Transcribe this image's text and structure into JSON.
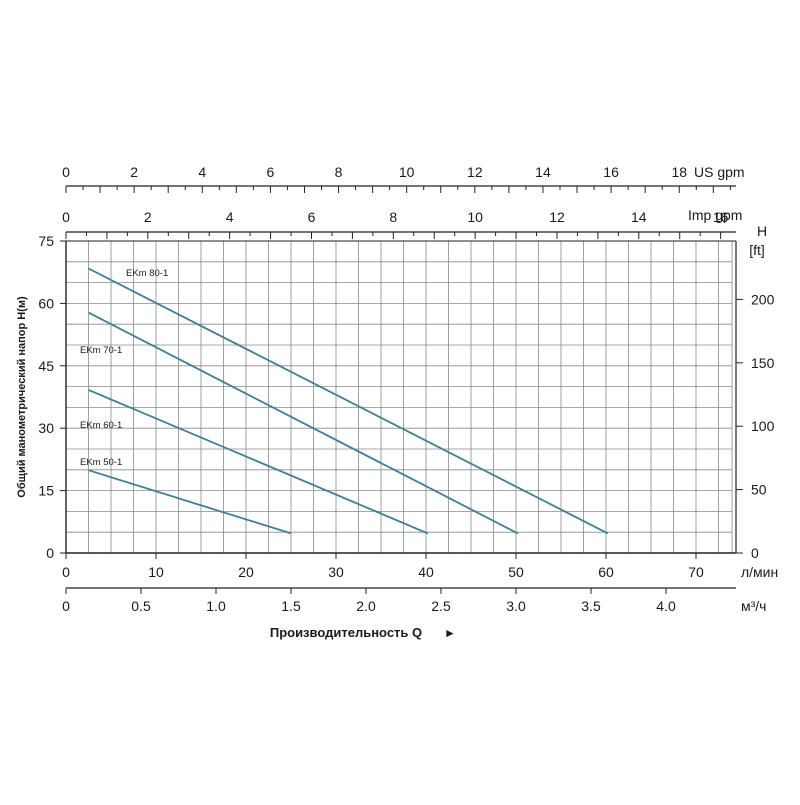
{
  "chart_data": {
    "type": "line",
    "xlabel": "Производительность Q",
    "xlabel_arrow": "►",
    "ylabel": "Общий манометрический напор H(м)",
    "colors": {
      "curve": "#3d7f94",
      "grid": "#8a8a8a",
      "axis": "#222222"
    },
    "grid": true,
    "primary_x": {
      "unit": "л/мин",
      "range": [
        0,
        76
      ],
      "ticks": [
        0,
        10,
        20,
        30,
        40,
        50,
        60,
        70
      ],
      "tick_labels": [
        "0",
        "10",
        "20",
        "30",
        "40",
        "50",
        "60",
        "70"
      ]
    },
    "primary_y": {
      "unit": "",
      "range": [
        0,
        75
      ],
      "ticks": [
        0,
        15,
        30,
        45,
        60,
        75
      ],
      "tick_labels": [
        "0",
        "15",
        "30",
        "45",
        "60",
        "75"
      ]
    },
    "secondary_x_bottom": {
      "unit": "м³/ч",
      "ticks": [
        0,
        0.5,
        1.0,
        1.5,
        2.0,
        2.5,
        3.0,
        3.5,
        4.0
      ],
      "tick_labels": [
        "0",
        "0.5",
        "1.0",
        "1.5",
        "2.0",
        "2.5",
        "3.0",
        "3.5",
        "4.0"
      ]
    },
    "secondary_x_imp": {
      "unit": "Imp gpm",
      "ticks": [
        0,
        2,
        4,
        6,
        8,
        10,
        12,
        14,
        16
      ],
      "tick_labels": [
        "0",
        "2",
        "4",
        "6",
        "8",
        "10",
        "12",
        "14",
        "16"
      ]
    },
    "secondary_x_us": {
      "unit": "US gpm",
      "ticks": [
        0,
        2,
        4,
        6,
        8,
        10,
        12,
        14,
        16,
        18
      ],
      "tick_labels": [
        "0",
        "2",
        "4",
        "6",
        "8",
        "10",
        "12",
        "14",
        "16",
        "18"
      ]
    },
    "secondary_y": {
      "unit_line1": "H",
      "unit_line2": "[ft]",
      "ticks": [
        0,
        50,
        100,
        150,
        200
      ],
      "tick_labels": [
        "0",
        "50",
        "100",
        "150",
        "200"
      ]
    },
    "series": [
      {
        "name": "EKm 80-1",
        "x": [
          2.5,
          60.2
        ],
        "y": [
          68.4,
          4.7
        ]
      },
      {
        "name": "EKm 70-1",
        "x": [
          2.5,
          50.2
        ],
        "y": [
          57.8,
          4.7
        ]
      },
      {
        "name": "EKm 60-1",
        "x": [
          2.5,
          40.2
        ],
        "y": [
          39.2,
          4.7
        ]
      },
      {
        "name": "EKm 50-1",
        "x": [
          2.5,
          25.0
        ],
        "y": [
          19.9,
          4.7
        ]
      }
    ]
  }
}
